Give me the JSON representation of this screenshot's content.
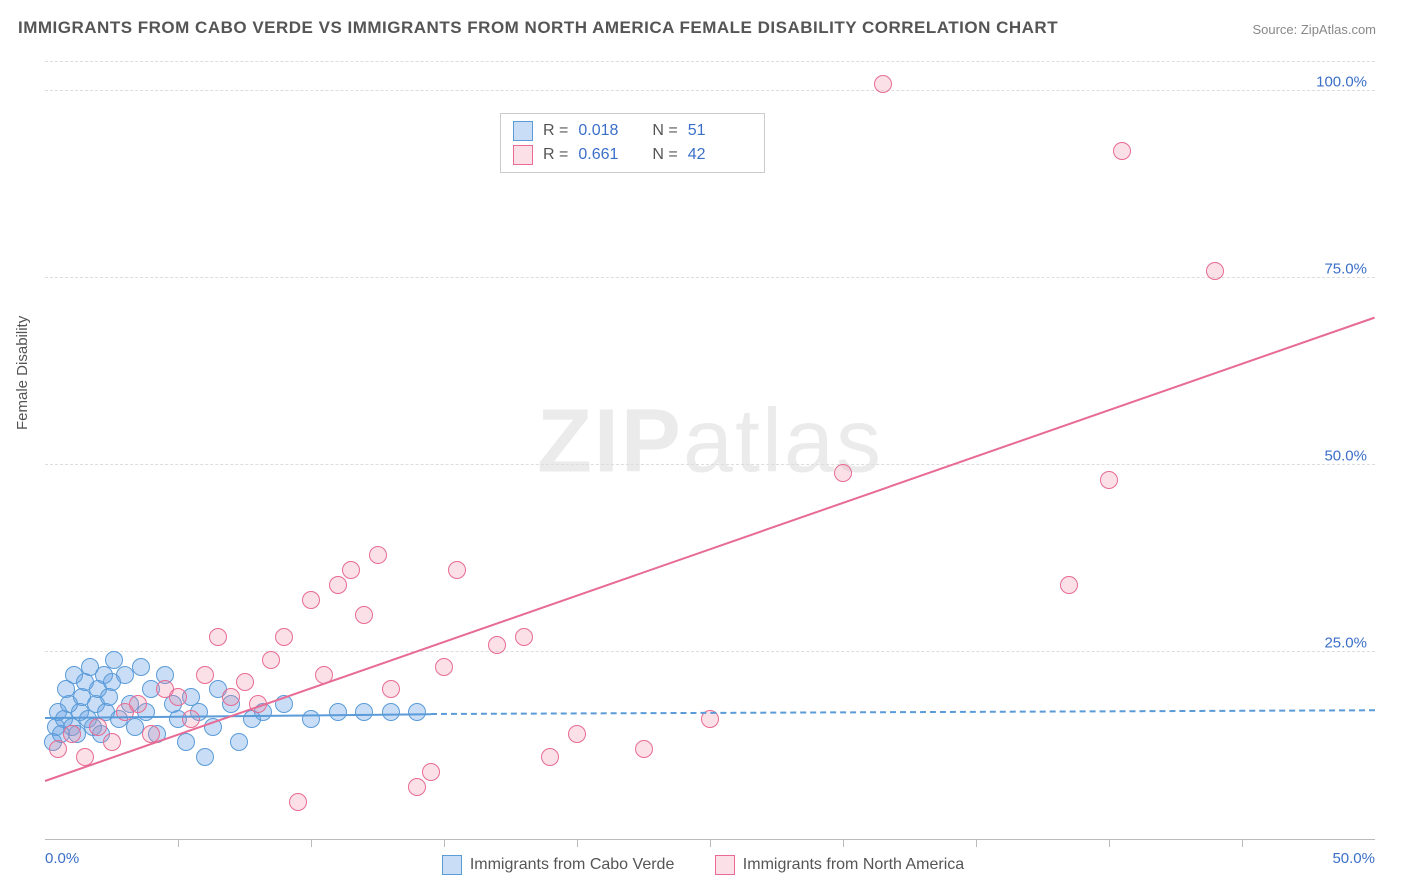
{
  "title": "IMMIGRANTS FROM CABO VERDE VS IMMIGRANTS FROM NORTH AMERICA FEMALE DISABILITY CORRELATION CHART",
  "source": "Source: ZipAtlas.com",
  "ylabel": "Female Disability",
  "watermark": {
    "bold": "ZIP",
    "rest": "atlas"
  },
  "chart": {
    "type": "scatter-with-trend",
    "background": "#ffffff",
    "grid_color": "#dddddd",
    "axis_color": "#bbbbbb",
    "tick_label_color": "#3b6fc9",
    "xlim": [
      0,
      50
    ],
    "ylim": [
      0,
      105
    ],
    "x_visible_ticks": [
      0,
      50
    ],
    "x_minor_ticks": [
      5,
      10,
      15,
      20,
      25,
      30,
      35,
      40,
      45
    ],
    "y_gridlines": [
      25,
      50,
      75,
      100
    ],
    "x_tick_format": "{v}.0%",
    "y_tick_format": "{v}.0%",
    "marker_radius": 9,
    "marker_border_width": 1.5,
    "trend_line_width": 2.5
  },
  "series": [
    {
      "key": "cabo_verde",
      "label": "Immigrants from Cabo Verde",
      "color_fill": "rgba(99,160,230,0.35)",
      "color_stroke": "#5a9bd8",
      "R": "0.018",
      "N": "51",
      "trend": {
        "x1": 0,
        "y1": 16.5,
        "x2": 14.5,
        "y2": 17.0,
        "style": "solid"
      },
      "trend_ext": {
        "x1": 14.5,
        "y1": 17.0,
        "x2": 50,
        "y2": 17.5,
        "style": "dashed"
      },
      "points": [
        [
          0.3,
          13
        ],
        [
          0.4,
          15
        ],
        [
          0.5,
          17
        ],
        [
          0.6,
          14
        ],
        [
          0.7,
          16
        ],
        [
          0.8,
          20
        ],
        [
          0.9,
          18
        ],
        [
          1.0,
          15
        ],
        [
          1.1,
          22
        ],
        [
          1.2,
          14
        ],
        [
          1.3,
          17
        ],
        [
          1.4,
          19
        ],
        [
          1.5,
          21
        ],
        [
          1.6,
          16
        ],
        [
          1.7,
          23
        ],
        [
          1.8,
          15
        ],
        [
          1.9,
          18
        ],
        [
          2.0,
          20
        ],
        [
          2.1,
          14
        ],
        [
          2.2,
          22
        ],
        [
          2.3,
          17
        ],
        [
          2.4,
          19
        ],
        [
          2.5,
          21
        ],
        [
          2.6,
          24
        ],
        [
          2.8,
          16
        ],
        [
          3.0,
          22
        ],
        [
          3.2,
          18
        ],
        [
          3.4,
          15
        ],
        [
          3.6,
          23
        ],
        [
          3.8,
          17
        ],
        [
          4.0,
          20
        ],
        [
          4.2,
          14
        ],
        [
          4.5,
          22
        ],
        [
          4.8,
          18
        ],
        [
          5.0,
          16
        ],
        [
          5.3,
          13
        ],
        [
          5.5,
          19
        ],
        [
          5.8,
          17
        ],
        [
          6.0,
          11
        ],
        [
          6.3,
          15
        ],
        [
          6.5,
          20
        ],
        [
          7.0,
          18
        ],
        [
          7.3,
          13
        ],
        [
          7.8,
          16
        ],
        [
          8.2,
          17
        ],
        [
          9.0,
          18
        ],
        [
          10.0,
          16
        ],
        [
          11.0,
          17
        ],
        [
          12.0,
          17
        ],
        [
          13.0,
          17
        ],
        [
          14.0,
          17
        ]
      ]
    },
    {
      "key": "north_america",
      "label": "Immigrants from North America",
      "color_fill": "rgba(240,130,160,0.25)",
      "color_stroke": "#e76b94",
      "R": "0.661",
      "N": "42",
      "trend": {
        "x1": 0,
        "y1": 8,
        "x2": 50,
        "y2": 70,
        "style": "solid"
      },
      "points": [
        [
          0.5,
          12
        ],
        [
          1.0,
          14
        ],
        [
          1.5,
          11
        ],
        [
          2.0,
          15
        ],
        [
          2.5,
          13
        ],
        [
          3.0,
          17
        ],
        [
          3.5,
          18
        ],
        [
          4.0,
          14
        ],
        [
          4.5,
          20
        ],
        [
          5.0,
          19
        ],
        [
          5.5,
          16
        ],
        [
          6.0,
          22
        ],
        [
          6.5,
          27
        ],
        [
          7.0,
          19
        ],
        [
          7.5,
          21
        ],
        [
          8.0,
          18
        ],
        [
          8.5,
          24
        ],
        [
          9.0,
          27
        ],
        [
          9.5,
          5
        ],
        [
          10.0,
          32
        ],
        [
          10.5,
          22
        ],
        [
          11.0,
          34
        ],
        [
          11.5,
          36
        ],
        [
          12.0,
          30
        ],
        [
          12.5,
          38
        ],
        [
          13.0,
          20
        ],
        [
          14.0,
          7
        ],
        [
          14.5,
          9
        ],
        [
          15.0,
          23
        ],
        [
          15.5,
          36
        ],
        [
          17.0,
          26
        ],
        [
          18.0,
          27
        ],
        [
          19.0,
          11
        ],
        [
          20.0,
          14
        ],
        [
          22.5,
          12
        ],
        [
          25.0,
          16
        ],
        [
          30.0,
          49
        ],
        [
          31.5,
          101
        ],
        [
          38.5,
          34
        ],
        [
          40.0,
          48
        ],
        [
          40.5,
          92
        ],
        [
          44.0,
          76
        ]
      ]
    }
  ],
  "legend_top_labels": {
    "R": "R =",
    "N": "N ="
  }
}
